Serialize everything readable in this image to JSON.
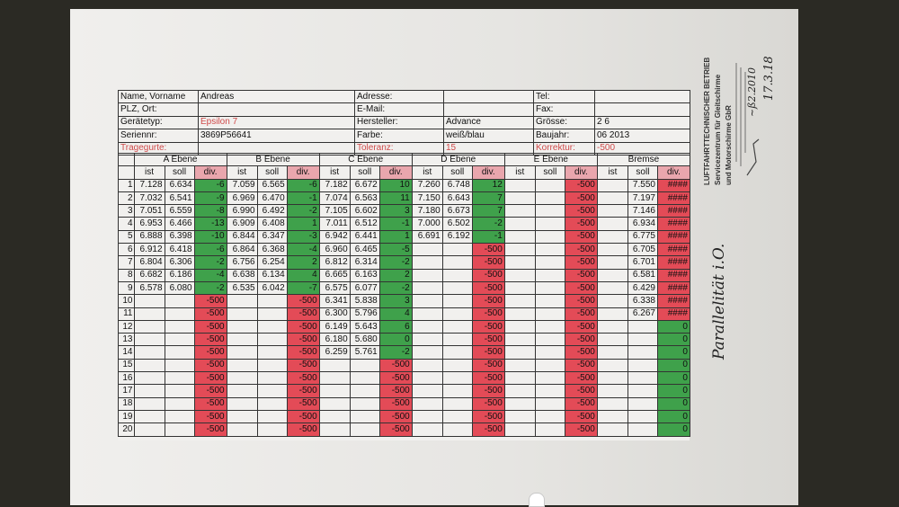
{
  "header": {
    "row1": {
      "l1": "Name, Vorname",
      "v1": "Andreas",
      "l2": "Adresse:",
      "v2": "",
      "l3": "Tel:",
      "v3": ""
    },
    "row2": {
      "l1": "PLZ, Ort:",
      "v1": "",
      "l2": "E-Mail:",
      "v2": "",
      "l3": "Fax:",
      "v3": ""
    },
    "row3": {
      "l1": "Gerätetyp:",
      "v1": "Epsilon 7",
      "l2": "Hersteller:",
      "v2": "Advance",
      "l3": "Grösse:",
      "v3": "2 6"
    },
    "row4": {
      "l1": "Seriennr:",
      "v1": "3869P56641",
      "l2": "Farbe:",
      "v2": "weiß/blau",
      "l3": "Baujahr:",
      "v3": "06 2013"
    },
    "row5": {
      "l1": "Tragegurte:",
      "v1": "",
      "l2": "Toleranz:",
      "v2": "15",
      "l3": "Korrektur:",
      "v3": "-500"
    }
  },
  "groups": [
    "A Ebene",
    "B Ebene",
    "C Ebene",
    "D Ebene",
    "E Ebene",
    "Bremse"
  ],
  "subheaders": {
    "ist": "ist",
    "soll": "soll",
    "div": "div."
  },
  "rows": [
    {
      "n": "1",
      "a": [
        "7.128",
        "6.634",
        "-6"
      ],
      "b": [
        "7.059",
        "6.565",
        "-6"
      ],
      "c": [
        "7.182",
        "6.672",
        "10"
      ],
      "d": [
        "7.260",
        "6.748",
        "12"
      ],
      "e": [
        "",
        "",
        "-500"
      ],
      "br": [
        "",
        "7.550",
        "####"
      ]
    },
    {
      "n": "2",
      "a": [
        "7.032",
        "6.541",
        "-9"
      ],
      "b": [
        "6.969",
        "6.470",
        "-1"
      ],
      "c": [
        "7.074",
        "6.563",
        "11"
      ],
      "d": [
        "7.150",
        "6.643",
        "7"
      ],
      "e": [
        "",
        "",
        "-500"
      ],
      "br": [
        "",
        "7.197",
        "####"
      ]
    },
    {
      "n": "3",
      "a": [
        "7.051",
        "6.559",
        "-8"
      ],
      "b": [
        "6.990",
        "6.492",
        "-2"
      ],
      "c": [
        "7.105",
        "6.602",
        "3"
      ],
      "d": [
        "7.180",
        "6.673",
        "7"
      ],
      "e": [
        "",
        "",
        "-500"
      ],
      "br": [
        "",
        "7.146",
        "####"
      ]
    },
    {
      "n": "4",
      "a": [
        "6.953",
        "6.466",
        "-13"
      ],
      "b": [
        "6.909",
        "6.408",
        "1"
      ],
      "c": [
        "7.011",
        "6.512",
        "-1"
      ],
      "d": [
        "7.000",
        "6.502",
        "-2"
      ],
      "e": [
        "",
        "",
        "-500"
      ],
      "br": [
        "",
        "6.934",
        "####"
      ]
    },
    {
      "n": "5",
      "a": [
        "6.888",
        "6.398",
        "-10"
      ],
      "b": [
        "6.844",
        "6.347",
        "-3"
      ],
      "c": [
        "6.942",
        "6.441",
        "1"
      ],
      "d": [
        "6.691",
        "6.192",
        "-1"
      ],
      "e": [
        "",
        "",
        "-500"
      ],
      "br": [
        "",
        "6.775",
        "####"
      ]
    },
    {
      "n": "6",
      "a": [
        "6.912",
        "6.418",
        "-6"
      ],
      "b": [
        "6.864",
        "6.368",
        "-4"
      ],
      "c": [
        "6.960",
        "6.465",
        "-5"
      ],
      "d": [
        "",
        "",
        "-500"
      ],
      "e": [
        "",
        "",
        "-500"
      ],
      "br": [
        "",
        "6.705",
        "####"
      ]
    },
    {
      "n": "7",
      "a": [
        "6.804",
        "6.306",
        "-2"
      ],
      "b": [
        "6.756",
        "6.254",
        "2"
      ],
      "c": [
        "6.812",
        "6.314",
        "-2"
      ],
      "d": [
        "",
        "",
        "-500"
      ],
      "e": [
        "",
        "",
        "-500"
      ],
      "br": [
        "",
        "6.701",
        "####"
      ]
    },
    {
      "n": "8",
      "a": [
        "6.682",
        "6.186",
        "-4"
      ],
      "b": [
        "6.638",
        "6.134",
        "4"
      ],
      "c": [
        "6.665",
        "6.163",
        "2"
      ],
      "d": [
        "",
        "",
        "-500"
      ],
      "e": [
        "",
        "",
        "-500"
      ],
      "br": [
        "",
        "6.581",
        "####"
      ]
    },
    {
      "n": "9",
      "a": [
        "6.578",
        "6.080",
        "-2"
      ],
      "b": [
        "6.535",
        "6.042",
        "-7"
      ],
      "c": [
        "6.575",
        "6.077",
        "-2"
      ],
      "d": [
        "",
        "",
        "-500"
      ],
      "e": [
        "",
        "",
        "-500"
      ],
      "br": [
        "",
        "6.429",
        "####"
      ]
    },
    {
      "n": "10",
      "a": [
        "",
        "",
        "-500"
      ],
      "b": [
        "",
        "",
        "-500"
      ],
      "c": [
        "6.341",
        "5.838",
        "3"
      ],
      "d": [
        "",
        "",
        "-500"
      ],
      "e": [
        "",
        "",
        "-500"
      ],
      "br": [
        "",
        "6.338",
        "####"
      ]
    },
    {
      "n": "11",
      "a": [
        "",
        "",
        "-500"
      ],
      "b": [
        "",
        "",
        "-500"
      ],
      "c": [
        "6.300",
        "5.796",
        "4"
      ],
      "d": [
        "",
        "",
        "-500"
      ],
      "e": [
        "",
        "",
        "-500"
      ],
      "br": [
        "",
        "6.267",
        "####"
      ]
    },
    {
      "n": "12",
      "a": [
        "",
        "",
        "-500"
      ],
      "b": [
        "",
        "",
        "-500"
      ],
      "c": [
        "6.149",
        "5.643",
        "6"
      ],
      "d": [
        "",
        "",
        "-500"
      ],
      "e": [
        "",
        "",
        "-500"
      ],
      "br": [
        "",
        "",
        "0"
      ]
    },
    {
      "n": "13",
      "a": [
        "",
        "",
        "-500"
      ],
      "b": [
        "",
        "",
        "-500"
      ],
      "c": [
        "6.180",
        "5.680",
        "0"
      ],
      "d": [
        "",
        "",
        "-500"
      ],
      "e": [
        "",
        "",
        "-500"
      ],
      "br": [
        "",
        "",
        "0"
      ]
    },
    {
      "n": "14",
      "a": [
        "",
        "",
        "-500"
      ],
      "b": [
        "",
        "",
        "-500"
      ],
      "c": [
        "6.259",
        "5.761",
        "-2"
      ],
      "d": [
        "",
        "",
        "-500"
      ],
      "e": [
        "",
        "",
        "-500"
      ],
      "br": [
        "",
        "",
        "0"
      ]
    },
    {
      "n": "15",
      "a": [
        "",
        "",
        "-500"
      ],
      "b": [
        "",
        "",
        "-500"
      ],
      "c": [
        "",
        "",
        "-500"
      ],
      "d": [
        "",
        "",
        "-500"
      ],
      "e": [
        "",
        "",
        "-500"
      ],
      "br": [
        "",
        "",
        "0"
      ]
    },
    {
      "n": "16",
      "a": [
        "",
        "",
        "-500"
      ],
      "b": [
        "",
        "",
        "-500"
      ],
      "c": [
        "",
        "",
        "-500"
      ],
      "d": [
        "",
        "",
        "-500"
      ],
      "e": [
        "",
        "",
        "-500"
      ],
      "br": [
        "",
        "",
        "0"
      ]
    },
    {
      "n": "17",
      "a": [
        "",
        "",
        "-500"
      ],
      "b": [
        "",
        "",
        "-500"
      ],
      "c": [
        "",
        "",
        "-500"
      ],
      "d": [
        "",
        "",
        "-500"
      ],
      "e": [
        "",
        "",
        "-500"
      ],
      "br": [
        "",
        "",
        "0"
      ]
    },
    {
      "n": "18",
      "a": [
        "",
        "",
        "-500"
      ],
      "b": [
        "",
        "",
        "-500"
      ],
      "c": [
        "",
        "",
        "-500"
      ],
      "d": [
        "",
        "",
        "-500"
      ],
      "e": [
        "",
        "",
        "-500"
      ],
      "br": [
        "",
        "",
        "0"
      ]
    },
    {
      "n": "19",
      "a": [
        "",
        "",
        "-500"
      ],
      "b": [
        "",
        "",
        "-500"
      ],
      "c": [
        "",
        "",
        "-500"
      ],
      "d": [
        "",
        "",
        "-500"
      ],
      "e": [
        "",
        "",
        "-500"
      ],
      "br": [
        "",
        "",
        "0"
      ]
    },
    {
      "n": "20",
      "a": [
        "",
        "",
        "-500"
      ],
      "b": [
        "",
        "",
        "-500"
      ],
      "c": [
        "",
        "",
        "-500"
      ],
      "d": [
        "",
        "",
        "-500"
      ],
      "e": [
        "",
        "",
        "-500"
      ],
      "br": [
        "",
        "",
        "0"
      ]
    }
  ],
  "colors": {
    "green": "#3fa14b",
    "red": "#e34b57",
    "label_red": "#d04a4a"
  },
  "stamp": {
    "line1": "LUFTFAHRTTECHNISCHER BETRIEB",
    "line2": "Servicezentrum für Gleitschirme",
    "line3": "und Motorschirme GbR"
  },
  "handwriting": {
    "signature_date": "17.3.18",
    "note": "Parallelität i.O."
  }
}
